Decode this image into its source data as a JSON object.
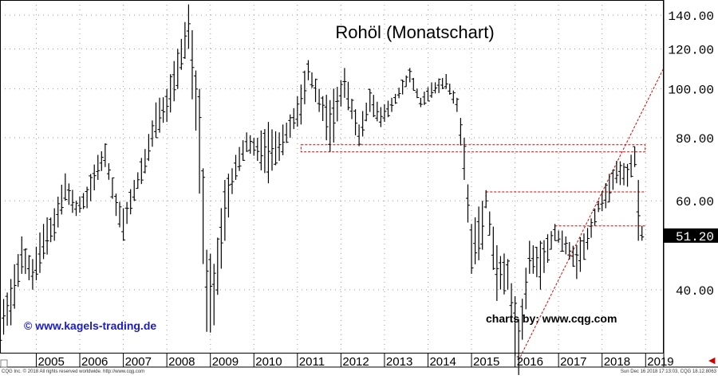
{
  "chart_data": {
    "type": "ohlc",
    "title": "Rohöl (Monatschart)",
    "y_scale": "log",
    "ylim": [
      30,
      150
    ],
    "xlim": [
      "2004-03",
      "2019-06"
    ],
    "y_ticks": [
      "140.00",
      "120.00",
      "100.00",
      "80.00",
      "60.00",
      "40.00"
    ],
    "x_ticks": [
      "2005",
      "2006",
      "2007",
      "2008",
      "2009",
      "2010",
      "2011",
      "2012",
      "2013",
      "2014",
      "2015",
      "2016",
      "2017",
      "2018",
      "2019"
    ],
    "last_price_label": "51.20",
    "grid": true,
    "colors": {
      "bars": "#000000",
      "annotations": "#e00000",
      "watermark_left": "#1a1ad0",
      "last_price_bg": "#000000",
      "last_price_text": "#ffffff"
    },
    "watermark_left": "© www.kagels-trading.de",
    "watermark_right": "charts by: www.cqg.com",
    "annotations": [
      {
        "type": "box",
        "from": "2011-02",
        "to": "2018-12",
        "low": 75,
        "high": 77.5
      },
      {
        "type": "hline",
        "from": "2015-05",
        "to": "2018-12",
        "y": 62.5
      },
      {
        "type": "hline",
        "from": "2016-12",
        "to": "2018-12",
        "y": 53.5
      },
      {
        "type": "trendline",
        "from": [
          "2016-02",
          29
        ],
        "to": [
          "2019-06",
          110
        ]
      }
    ],
    "series": [
      {
        "points": [
          [
            "2004-03",
            37.5,
            31
          ],
          [
            "2004-06",
            42,
            34
          ],
          [
            "2004-09",
            51,
            43
          ],
          [
            "2004-12",
            46,
            40
          ],
          [
            "2005-03",
            54,
            46
          ],
          [
            "2005-06",
            58,
            50
          ],
          [
            "2005-09",
            68,
            60
          ],
          [
            "2005-12",
            60,
            56
          ],
          [
            "2006-03",
            64,
            58
          ],
          [
            "2006-06",
            74,
            66
          ],
          [
            "2006-08",
            78,
            70
          ],
          [
            "2006-11",
            62,
            56
          ],
          [
            "2007-01",
            58,
            50
          ],
          [
            "2007-04",
            66,
            60
          ],
          [
            "2007-07",
            76,
            68
          ],
          [
            "2007-10",
            94,
            80
          ],
          [
            "2008-01",
            100,
            86
          ],
          [
            "2008-04",
            120,
            100
          ],
          [
            "2008-07",
            147,
            120
          ],
          [
            "2008-10",
            100,
            62
          ],
          [
            "2008-12",
            48,
            33
          ],
          [
            "2009-02",
            45,
            34
          ],
          [
            "2009-05",
            66,
            50
          ],
          [
            "2009-08",
            74,
            66
          ],
          [
            "2009-11",
            82,
            75
          ],
          [
            "2010-02",
            80,
            72
          ],
          [
            "2010-05",
            86,
            65
          ],
          [
            "2010-08",
            82,
            72
          ],
          [
            "2010-11",
            89,
            80
          ],
          [
            "2011-02",
            102,
            85
          ],
          [
            "2011-04",
            114,
            104
          ],
          [
            "2011-07",
            100,
            90
          ],
          [
            "2011-10",
            95,
            75
          ],
          [
            "2012-02",
            110,
            96
          ],
          [
            "2012-06",
            85,
            77
          ],
          [
            "2012-09",
            100,
            90
          ],
          [
            "2012-12",
            92,
            84
          ],
          [
            "2013-03",
            96,
            90
          ],
          [
            "2013-08",
            110,
            103
          ],
          [
            "2013-11",
            96,
            92
          ],
          [
            "2014-02",
            103,
            96
          ],
          [
            "2014-06",
            107,
            100
          ],
          [
            "2014-09",
            96,
            90
          ],
          [
            "2014-11",
            80,
            66
          ],
          [
            "2015-01",
            54,
            43
          ],
          [
            "2015-04",
            60,
            48
          ],
          [
            "2015-05",
            63,
            58
          ],
          [
            "2015-08",
            49,
            38
          ],
          [
            "2015-11",
            46,
            40
          ],
          [
            "2016-02",
            35,
            26
          ],
          [
            "2016-05",
            50,
            43
          ],
          [
            "2016-08",
            50,
            40
          ],
          [
            "2016-12",
            54,
            50
          ],
          [
            "2017-03",
            51,
            47
          ],
          [
            "2017-06",
            49,
            42
          ],
          [
            "2017-09",
            53,
            48
          ],
          [
            "2017-12",
            60,
            57
          ],
          [
            "2018-02",
            65,
            58
          ],
          [
            "2018-05",
            72,
            65
          ],
          [
            "2018-08",
            71,
            64
          ],
          [
            "2018-10",
            76.9,
            70
          ],
          [
            "2018-11",
            66,
            50
          ],
          [
            "2018-12",
            54,
            49.5
          ]
        ]
      }
    ]
  },
  "footer": {
    "left": "CQG Inc. © 2018 All rights reserved worldwide. http://www.cqg.com",
    "right": "Sun Dec 16 2018 17:13:03, CQG 18.12.8063"
  }
}
